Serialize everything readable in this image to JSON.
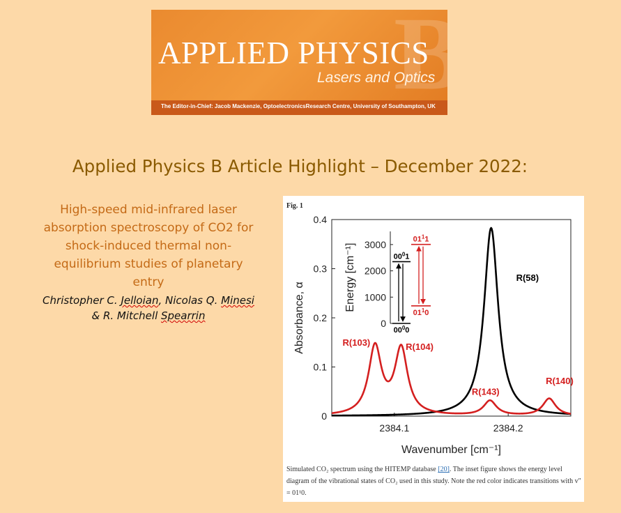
{
  "banner": {
    "title": "APPLIED PHYSICS",
    "letter": "B",
    "subtitle": "Lasers and Optics",
    "editor": "The Editor-in-Chief: Jacob Mackenzie, OptoelectronicsResearch Centre, University of Southampton, UK"
  },
  "headline": "Applied Physics B Article Highlight – December 2022:",
  "article": {
    "title_lines": [
      "High-speed mid-infrared laser",
      "absorption spectroscopy of CO2 for",
      "shock-induced thermal non-",
      "equilibrium studies of planetary",
      "entry"
    ],
    "authors": {
      "line1_a": "Christopher C. ",
      "line1_b": "Jelloian",
      "line1_c": ", Nicolas Q. ",
      "line1_d": "Minesi",
      "line2_a": "& R. Mitchell ",
      "line2_b": "Spearrin"
    }
  },
  "figure": {
    "label": "Fig. 1",
    "caption_a": "Simulated CO₂ spectrum using the HITEMP database ",
    "caption_ref": "[20]",
    "caption_b": ". The inset figure shows the energy level diagram of the vibrational states of CO₂ used in this study. Note the red color indicates transitions with v″ = 01¹0."
  },
  "chart_data": {
    "type": "line",
    "xlabel": "Wavenumber [cm⁻¹]",
    "ylabel": "Absorbance, α",
    "xlim": [
      2384.045,
      2384.255
    ],
    "ylim": [
      0,
      0.4
    ],
    "x_ticks": [
      2384.1,
      2384.2
    ],
    "x_tick_labels": [
      "2384.1",
      "2384.2"
    ],
    "y_ticks": [
      0,
      0.1,
      0.2,
      0.3,
      0.4
    ],
    "y_tick_labels": [
      "0",
      "0.1",
      "0.2",
      "0.3",
      "0.4"
    ],
    "series": [
      {
        "color": "#000000",
        "lines": [
          {
            "center": 2384.185,
            "amp": 0.383,
            "width": 0.0075
          }
        ]
      },
      {
        "color": "#d41f1f",
        "lines": [
          {
            "center": 2384.083,
            "amp": 0.138,
            "width": 0.0068
          },
          {
            "center": 2384.106,
            "amp": 0.134,
            "width": 0.0068
          },
          {
            "center": 2384.184,
            "amp": 0.03,
            "width": 0.0068
          },
          {
            "center": 2384.236,
            "amp": 0.035,
            "width": 0.0068
          }
        ]
      }
    ],
    "annotations": [
      {
        "text": "R(58)",
        "x": 2384.207,
        "y": 0.275,
        "color": "#000000"
      },
      {
        "text": "R(103)",
        "x": 2384.0545,
        "y": 0.143,
        "color": "#d41f1f"
      },
      {
        "text": "R(104)",
        "x": 2384.11,
        "y": 0.135,
        "color": "#d41f1f"
      },
      {
        "text": "R(143)",
        "x": 2384.168,
        "y": 0.043,
        "color": "#d41f1f"
      },
      {
        "text": "R(140)",
        "x": 2384.233,
        "y": 0.065,
        "color": "#d41f1f"
      }
    ],
    "inset": {
      "ylabel": "Energy [cm⁻¹]",
      "ylim": [
        0,
        3500
      ],
      "y_ticks": [
        0,
        1000,
        2000,
        3000
      ],
      "y_tick_labels": [
        "0",
        "1000",
        "2000",
        "3000"
      ],
      "levels": [
        {
          "label_base": "00",
          "label_sup": "0",
          "label_end": "0",
          "energy": 0,
          "color": "#000000",
          "side": "left"
        },
        {
          "label_base": "00",
          "label_sup": "0",
          "label_end": "1",
          "energy": 2349,
          "color": "#000000",
          "side": "left"
        },
        {
          "label_base": "01",
          "label_sup": "1",
          "label_end": "0",
          "energy": 667,
          "color": "#d41f1f",
          "side": "right"
        },
        {
          "label_base": "01",
          "label_sup": "1",
          "label_end": "1",
          "energy": 3004,
          "color": "#d41f1f",
          "side": "right"
        }
      ]
    }
  }
}
